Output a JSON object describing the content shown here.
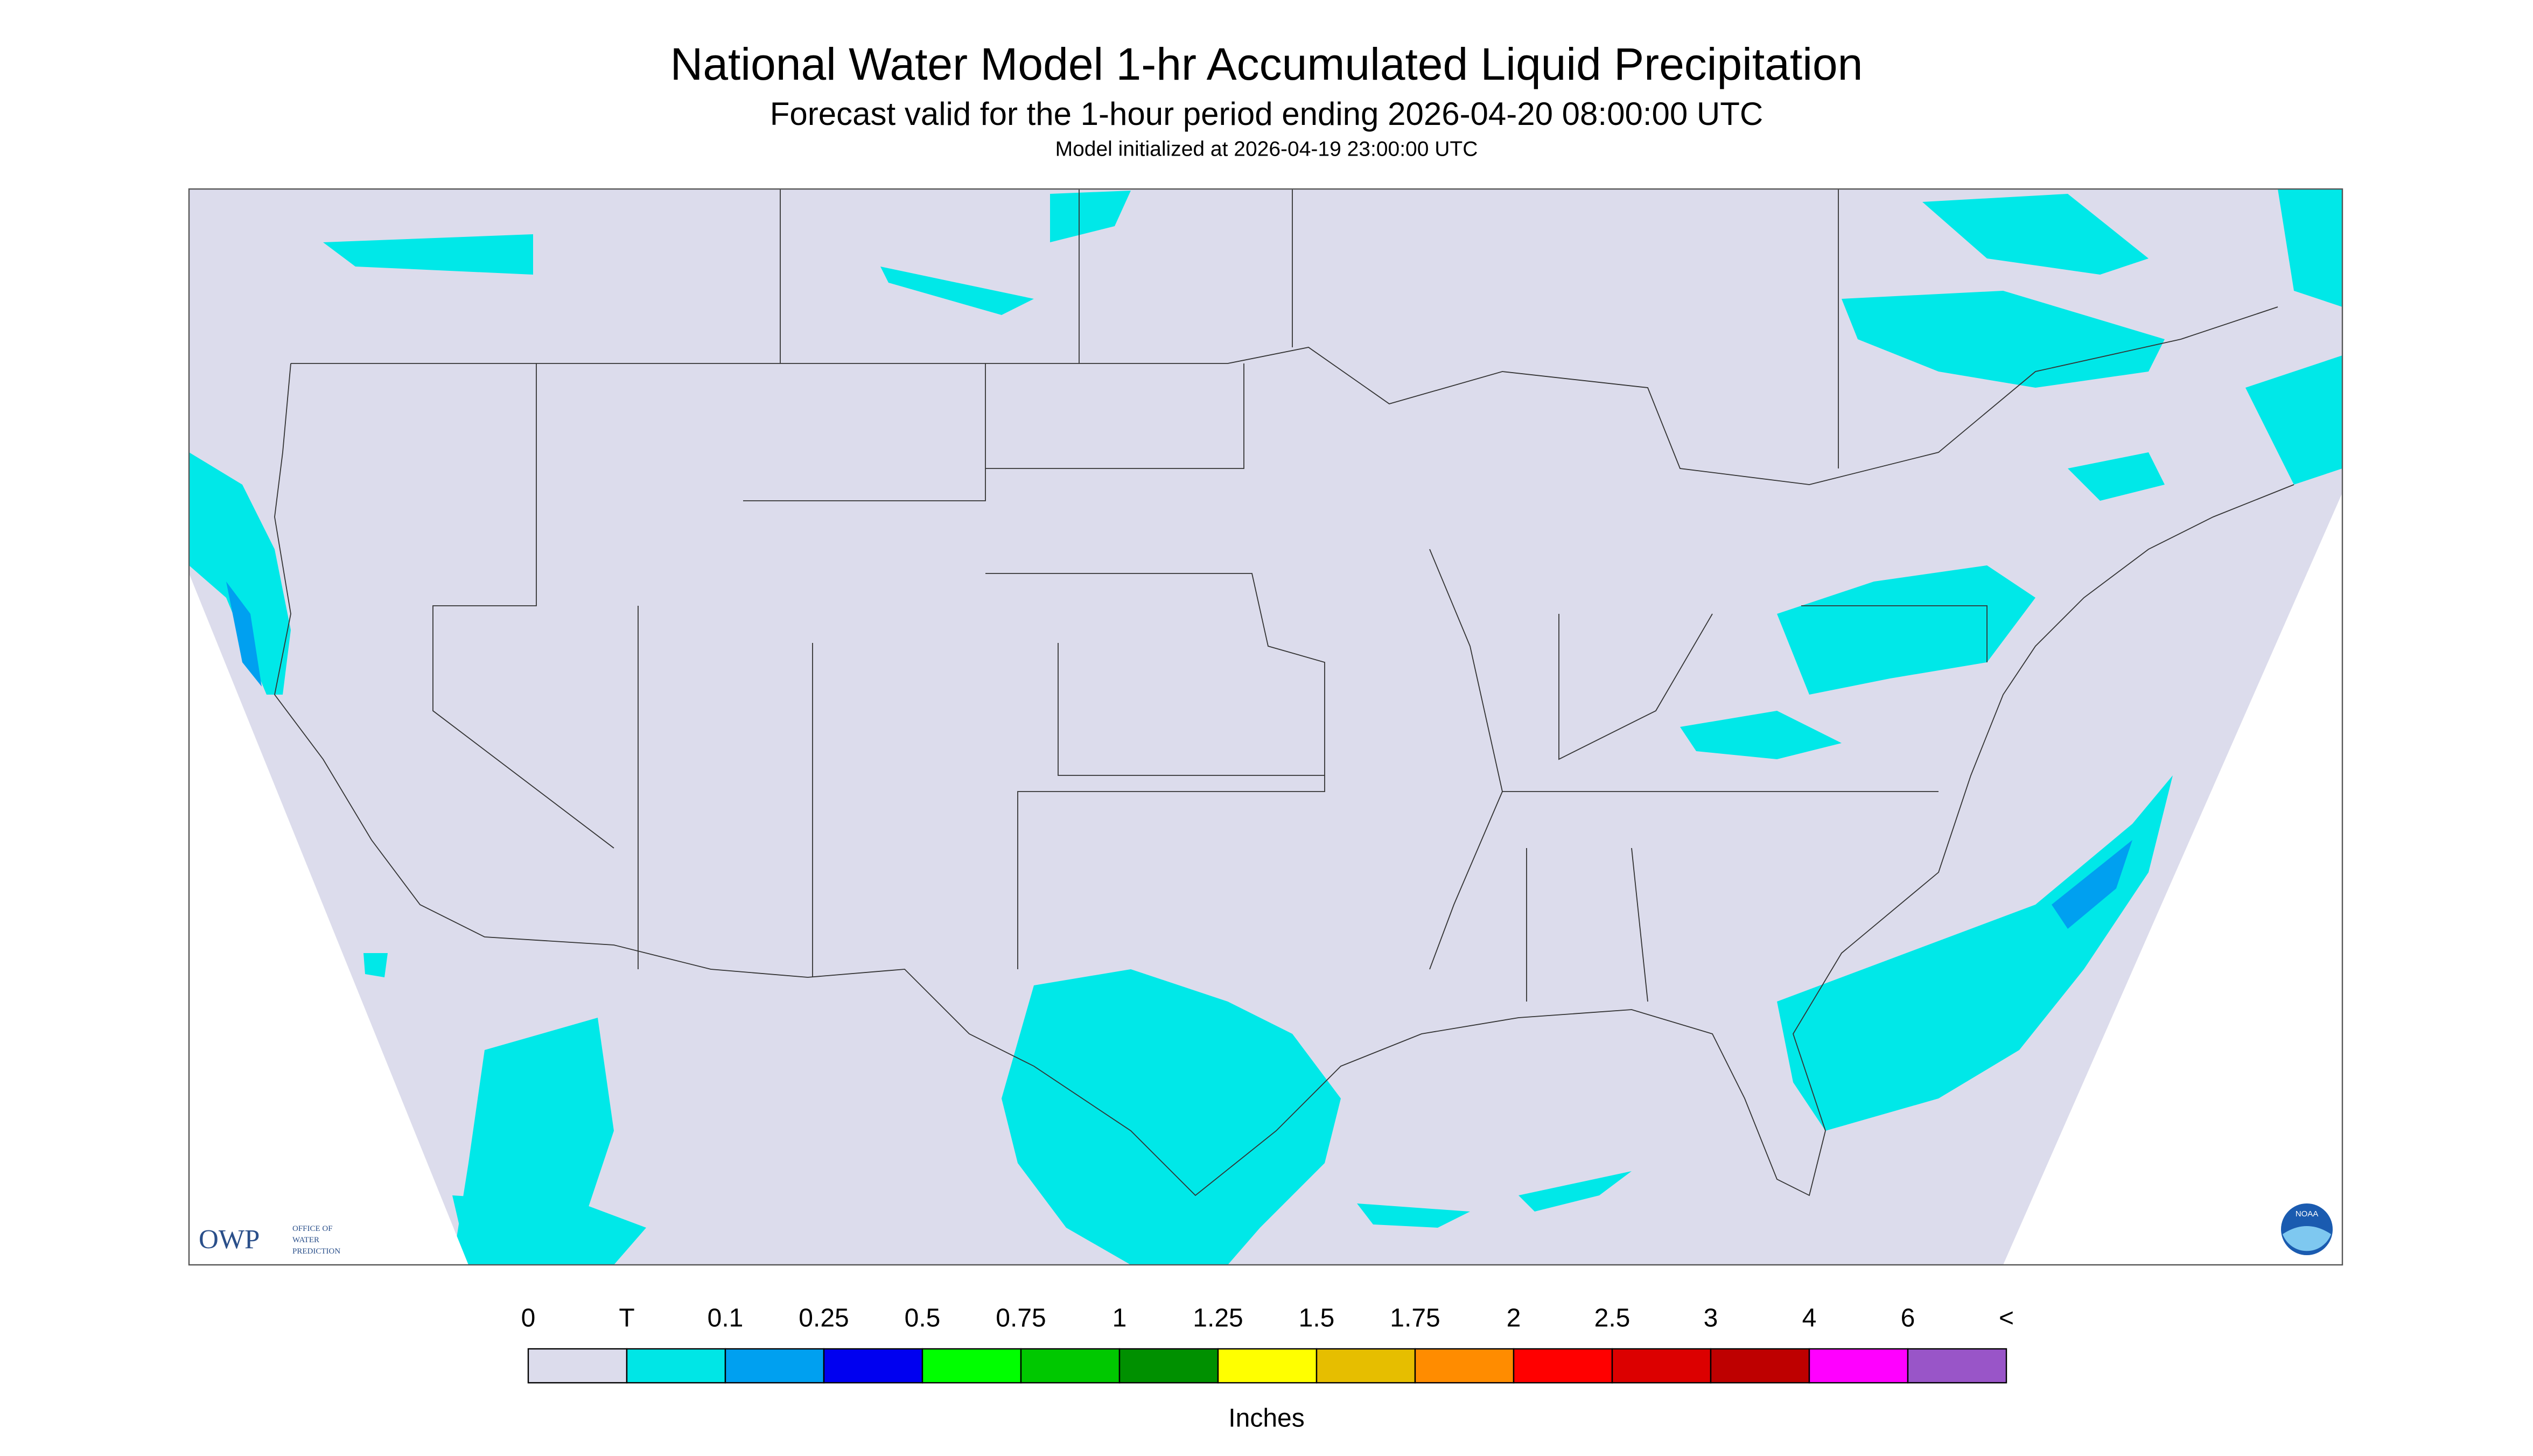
{
  "header": {
    "title": "National Water Model 1-hr Accumulated Liquid Precipitation",
    "subtitle": "Forecast valid for the 1-hour period ending 2026-04-20 08:00:00 UTC",
    "init": "Model initialized at 2026-04-19 23:00:00 UTC"
  },
  "logos": {
    "owp": "OWP",
    "owp_text": [
      "OFFICE OF",
      "WATER",
      "PREDICTION"
    ],
    "noaa": "NOAA"
  },
  "legend": {
    "labels": [
      "0",
      "T",
      "0.1",
      "0.25",
      "0.5",
      "0.75",
      "1",
      "1.25",
      "1.5",
      "1.75",
      "2",
      "2.5",
      "3",
      "4",
      "6",
      "<"
    ],
    "colors": [
      "#dcdcec",
      "#00e6e6",
      "#00a0f0",
      "#0000f0",
      "#00ff00",
      "#00c800",
      "#009000",
      "#ffff00",
      "#e6be00",
      "#ff8c00",
      "#ff0000",
      "#dc0000",
      "#be0000",
      "#ff00ff",
      "#9955c8"
    ],
    "unit": "Inches"
  }
}
